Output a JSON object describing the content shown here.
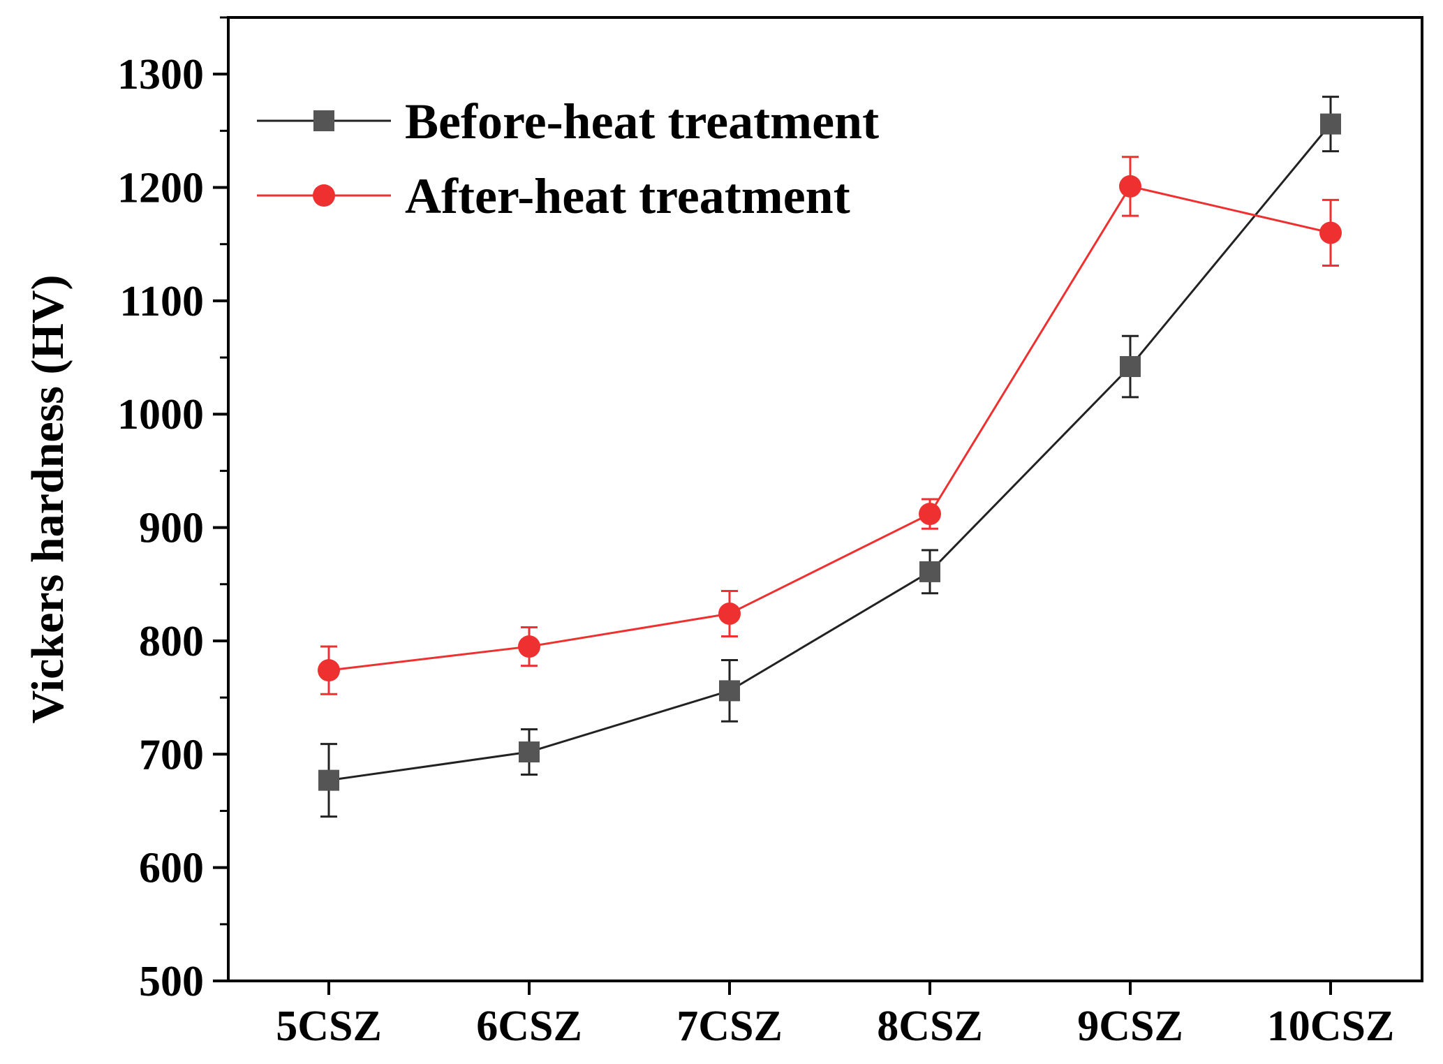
{
  "chart_data": {
    "type": "line",
    "title": "",
    "xlabel": "",
    "ylabel": "Vickers hardness (HV)",
    "categories": [
      "5CSZ",
      "6CSZ",
      "7CSZ",
      "8CSZ",
      "9CSZ",
      "10CSZ"
    ],
    "ylim": [
      500,
      1350
    ],
    "yticks": [
      500,
      600,
      700,
      800,
      900,
      1000,
      1100,
      1200,
      1300
    ],
    "grid": false,
    "legend_position": "top-left",
    "series": [
      {
        "name": "Before-heat treatment",
        "color": "#555555",
        "marker": "square",
        "values": [
          677,
          702,
          756,
          861,
          1042,
          1256
        ],
        "errors": [
          32,
          20,
          27,
          19,
          27,
          24
        ]
      },
      {
        "name": "After-heat treatment",
        "color": "#ee3030",
        "marker": "circle",
        "values": [
          774,
          795,
          824,
          912,
          1201,
          1160
        ],
        "errors": [
          21,
          17,
          20,
          13,
          26,
          29
        ]
      }
    ]
  }
}
